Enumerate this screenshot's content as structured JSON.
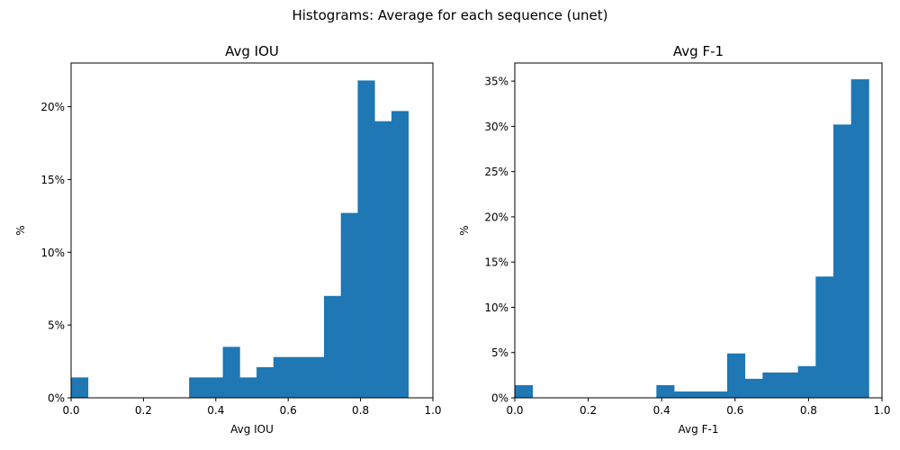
{
  "figure": {
    "title": "Histograms: Average for each sequence (unet)"
  },
  "colors": {
    "bar": "#1f77b4",
    "axis": "#000000",
    "background": "#ffffff"
  },
  "chart_data": [
    {
      "type": "bar",
      "title": "Avg IOU",
      "xlabel": "Avg IOU",
      "ylabel": "%",
      "xlim": [
        0,
        1.0
      ],
      "ylim": [
        0,
        23
      ],
      "xticks": [
        0.0,
        0.2,
        0.4,
        0.6,
        0.8,
        1.0
      ],
      "xtick_labels": [
        "0.0",
        "0.2",
        "0.4",
        "0.6",
        "0.8",
        "1.0"
      ],
      "yticks": [
        0,
        5,
        10,
        15,
        20
      ],
      "ytick_labels": [
        "0%",
        "5%",
        "10%",
        "15%",
        "20%"
      ],
      "bin_edges": [
        0.0,
        0.0466,
        0.0932,
        0.1398,
        0.1864,
        0.233,
        0.2796,
        0.3262,
        0.3728,
        0.4194,
        0.466,
        0.5126,
        0.5592,
        0.6058,
        0.6524,
        0.699,
        0.7456,
        0.7922,
        0.8388,
        0.8854,
        0.932
      ],
      "values": [
        1.4,
        0,
        0,
        0,
        0,
        0,
        0,
        1.4,
        1.4,
        3.5,
        1.4,
        2.1,
        2.8,
        2.8,
        2.8,
        7.0,
        12.7,
        21.8,
        19.0,
        19.7
      ],
      "grid": false,
      "legend": false
    },
    {
      "type": "bar",
      "title": "Avg F-1",
      "xlabel": "Avg F-1",
      "ylabel": "%",
      "xlim": [
        0,
        1.0
      ],
      "ylim": [
        0,
        37
      ],
      "xticks": [
        0.0,
        0.2,
        0.4,
        0.6,
        0.8,
        1.0
      ],
      "xtick_labels": [
        "0.0",
        "0.2",
        "0.4",
        "0.6",
        "0.8",
        "1.0"
      ],
      "yticks": [
        0,
        5,
        10,
        15,
        20,
        25,
        30,
        35
      ],
      "ytick_labels": [
        "0%",
        "5%",
        "10%",
        "15%",
        "20%",
        "25%",
        "30%",
        "35%"
      ],
      "bin_edges": [
        0.0,
        0.0482,
        0.0964,
        0.1446,
        0.1928,
        0.241,
        0.2892,
        0.3374,
        0.3856,
        0.4338,
        0.482,
        0.5302,
        0.5784,
        0.6266,
        0.6748,
        0.723,
        0.7712,
        0.8194,
        0.8676,
        0.9158,
        0.964
      ],
      "values": [
        1.4,
        0,
        0,
        0,
        0,
        0,
        0,
        0,
        1.4,
        0.7,
        0.7,
        0.7,
        4.9,
        2.1,
        2.8,
        2.8,
        3.5,
        13.4,
        30.2,
        35.2
      ],
      "grid": false,
      "legend": false
    }
  ]
}
